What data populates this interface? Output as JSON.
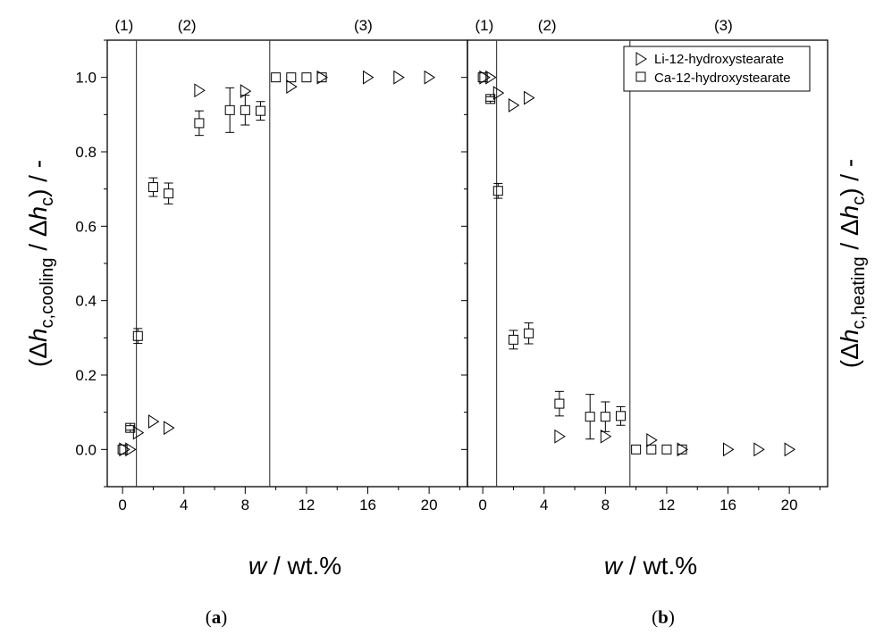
{
  "chart_data": [
    {
      "type": "scatter",
      "panel": "a",
      "caption_open": "(",
      "caption_letter": "a",
      "caption_close": ")",
      "xlabel_italic": "w",
      "xlabel_rest": " / wt.%",
      "ylabel": "(Δh_c,cooling / Δh_c) / -",
      "xlim": [
        -1,
        22.5
      ],
      "ylim": [
        -0.1,
        1.1
      ],
      "xticks": [
        0,
        4,
        8,
        12,
        16,
        20
      ],
      "yticks": [
        0.0,
        0.2,
        0.4,
        0.6,
        0.8,
        1.0
      ],
      "ytick_labels": [
        "0.0",
        "0.2",
        "0.4",
        "0.6",
        "0.8",
        "1.0"
      ],
      "region_boundaries": [
        0.9,
        9.6
      ],
      "region_labels": [
        {
          "text": "(1)",
          "x": 0.1
        },
        {
          "text": "(2)",
          "x": 4.2
        },
        {
          "text": "(3)",
          "x": 15.7
        }
      ],
      "series": [
        {
          "name": "Li-12-hydroxystearate",
          "marker": "triangle-right",
          "points": [
            {
              "x": 0.1,
              "y": 0.0
            },
            {
              "x": 0.5,
              "y": 0.0
            },
            {
              "x": 1.0,
              "y": 0.045
            },
            {
              "x": 2.0,
              "y": 0.075
            },
            {
              "x": 3.0,
              "y": 0.058
            },
            {
              "x": 5.0,
              "y": 0.965
            },
            {
              "x": 8.0,
              "y": 0.963
            },
            {
              "x": 11.0,
              "y": 0.975
            },
            {
              "x": 13.0,
              "y": 1.0
            },
            {
              "x": 16.0,
              "y": 1.0
            },
            {
              "x": 18.0,
              "y": 1.0
            },
            {
              "x": 20.0,
              "y": 1.0
            }
          ]
        },
        {
          "name": "Ca-12-hydroxystearate",
          "marker": "square",
          "points": [
            {
              "x": 0.0,
              "y": 0.0,
              "err": 0.0
            },
            {
              "x": 0.5,
              "y": 0.058,
              "err": 0.006
            },
            {
              "x": 1.0,
              "y": 0.305,
              "err": 0.02
            },
            {
              "x": 2.0,
              "y": 0.705,
              "err": 0.025
            },
            {
              "x": 3.0,
              "y": 0.688,
              "err": 0.028
            },
            {
              "x": 5.0,
              "y": 0.877,
              "err": 0.033
            },
            {
              "x": 7.0,
              "y": 0.912,
              "err": 0.06
            },
            {
              "x": 8.0,
              "y": 0.912,
              "err": 0.04
            },
            {
              "x": 9.0,
              "y": 0.91,
              "err": 0.025
            },
            {
              "x": 10.0,
              "y": 1.0,
              "err": 0.0
            },
            {
              "x": 11.0,
              "y": 1.0,
              "err": 0.0
            },
            {
              "x": 12.0,
              "y": 1.0,
              "err": 0.0
            },
            {
              "x": 13.0,
              "y": 1.0,
              "err": 0.0
            }
          ]
        }
      ]
    },
    {
      "type": "scatter",
      "panel": "b",
      "caption_open": "(",
      "caption_letter": "b",
      "caption_close": ")",
      "xlabel_italic": "w",
      "xlabel_rest": " / wt.%",
      "ylabel": "(Δh_c,heating / Δh_c) / -",
      "xlim": [
        -1,
        22.5
      ],
      "ylim": [
        -0.1,
        1.1
      ],
      "xticks": [
        0,
        4,
        8,
        12,
        16,
        20
      ],
      "yticks": [
        0.0,
        0.2,
        0.4,
        0.6,
        0.8,
        1.0
      ],
      "region_boundaries": [
        0.9,
        9.6
      ],
      "region_labels": [
        {
          "text": "(1)",
          "x": 0.1
        },
        {
          "text": "(2)",
          "x": 4.2
        },
        {
          "text": "(3)",
          "x": 15.7
        }
      ],
      "legend_position": "top-right",
      "series": [
        {
          "name": "Li-12-hydroxystearate",
          "marker": "triangle-right",
          "points": [
            {
              "x": 0.1,
              "y": 1.0
            },
            {
              "x": 0.5,
              "y": 1.0
            },
            {
              "x": 1.0,
              "y": 0.958
            },
            {
              "x": 2.0,
              "y": 0.925
            },
            {
              "x": 3.0,
              "y": 0.945
            },
            {
              "x": 5.0,
              "y": 0.035
            },
            {
              "x": 8.0,
              "y": 0.035
            },
            {
              "x": 11.0,
              "y": 0.025
            },
            {
              "x": 13.0,
              "y": 0.0
            },
            {
              "x": 16.0,
              "y": 0.0
            },
            {
              "x": 18.0,
              "y": 0.0
            },
            {
              "x": 20.0,
              "y": 0.0
            }
          ]
        },
        {
          "name": "Ca-12-hydroxystearate",
          "marker": "square",
          "points": [
            {
              "x": 0.0,
              "y": 1.0,
              "err": 0.0
            },
            {
              "x": 0.5,
              "y": 0.942,
              "err": 0.006
            },
            {
              "x": 1.0,
              "y": 0.695,
              "err": 0.02
            },
            {
              "x": 2.0,
              "y": 0.295,
              "err": 0.025
            },
            {
              "x": 3.0,
              "y": 0.312,
              "err": 0.028
            },
            {
              "x": 5.0,
              "y": 0.123,
              "err": 0.033
            },
            {
              "x": 7.0,
              "y": 0.088,
              "err": 0.06
            },
            {
              "x": 8.0,
              "y": 0.088,
              "err": 0.04
            },
            {
              "x": 9.0,
              "y": 0.09,
              "err": 0.025
            },
            {
              "x": 10.0,
              "y": 0.0,
              "err": 0.0
            },
            {
              "x": 11.0,
              "y": 0.0,
              "err": 0.0
            },
            {
              "x": 12.0,
              "y": 0.0,
              "err": 0.0
            },
            {
              "x": 13.0,
              "y": 0.0,
              "err": 0.0
            }
          ]
        }
      ]
    }
  ]
}
